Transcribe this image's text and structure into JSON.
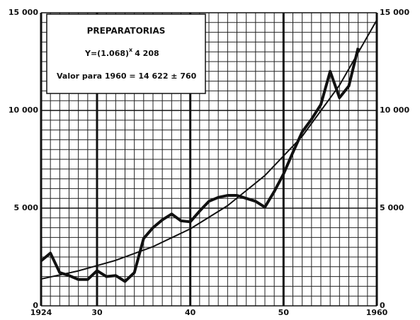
{
  "chart_data": {
    "type": "line",
    "title": "PREPARATORIAS",
    "formula": "Y=(1.068)",
    "formula_exponent": "x",
    "formula_tail": "4 208",
    "note": "Valor para 1960 = 14 622 ± 760",
    "color": "#111111",
    "observed": {
      "x": [
        1924,
        1925,
        1926,
        1927,
        1928,
        1929,
        1930,
        1931,
        1932,
        1933,
        1934,
        1935,
        1936,
        1937,
        1938,
        1939,
        1940,
        1941,
        1942,
        1943,
        1944,
        1945,
        1946,
        1947,
        1948,
        1949,
        1950,
        1951,
        1952,
        1953,
        1954,
        1955,
        1956,
        1957,
        1958
      ],
      "values": [
        2300,
        2700,
        1700,
        1550,
        1350,
        1350,
        1800,
        1500,
        1550,
        1250,
        1700,
        3450,
        4000,
        4400,
        4700,
        4350,
        4300,
        4850,
        5350,
        5550,
        5650,
        5650,
        5500,
        5350,
        5050,
        5850,
        6750,
        7850,
        8900,
        9550,
        10300,
        12000,
        10650,
        11250,
        13200
      ]
    },
    "trend": {
      "x": [
        1924,
        1928,
        1932,
        1936,
        1940,
        1944,
        1948,
        1952,
        1956,
        1960
      ],
      "values": [
        1375,
        1790,
        2328,
        3029,
        3940,
        5126,
        6669,
        8677,
        11290,
        14622
      ]
    },
    "xlim": [
      1924,
      1960
    ],
    "xticks": [
      {
        "value": 1924,
        "label": "1924"
      },
      {
        "value": 1930,
        "label": "30"
      },
      {
        "value": 1940,
        "label": "40"
      },
      {
        "value": 1950,
        "label": "50"
      },
      {
        "value": 1960,
        "label": "1960"
      }
    ],
    "ylim": [
      0,
      15000
    ],
    "yticks": [
      0,
      {
        "value": 5000,
        "label": "5 000"
      },
      {
        "value": 10000,
        "label": "10 000"
      },
      {
        "value": 15000,
        "label": "15 000"
      }
    ],
    "grid": true
  }
}
